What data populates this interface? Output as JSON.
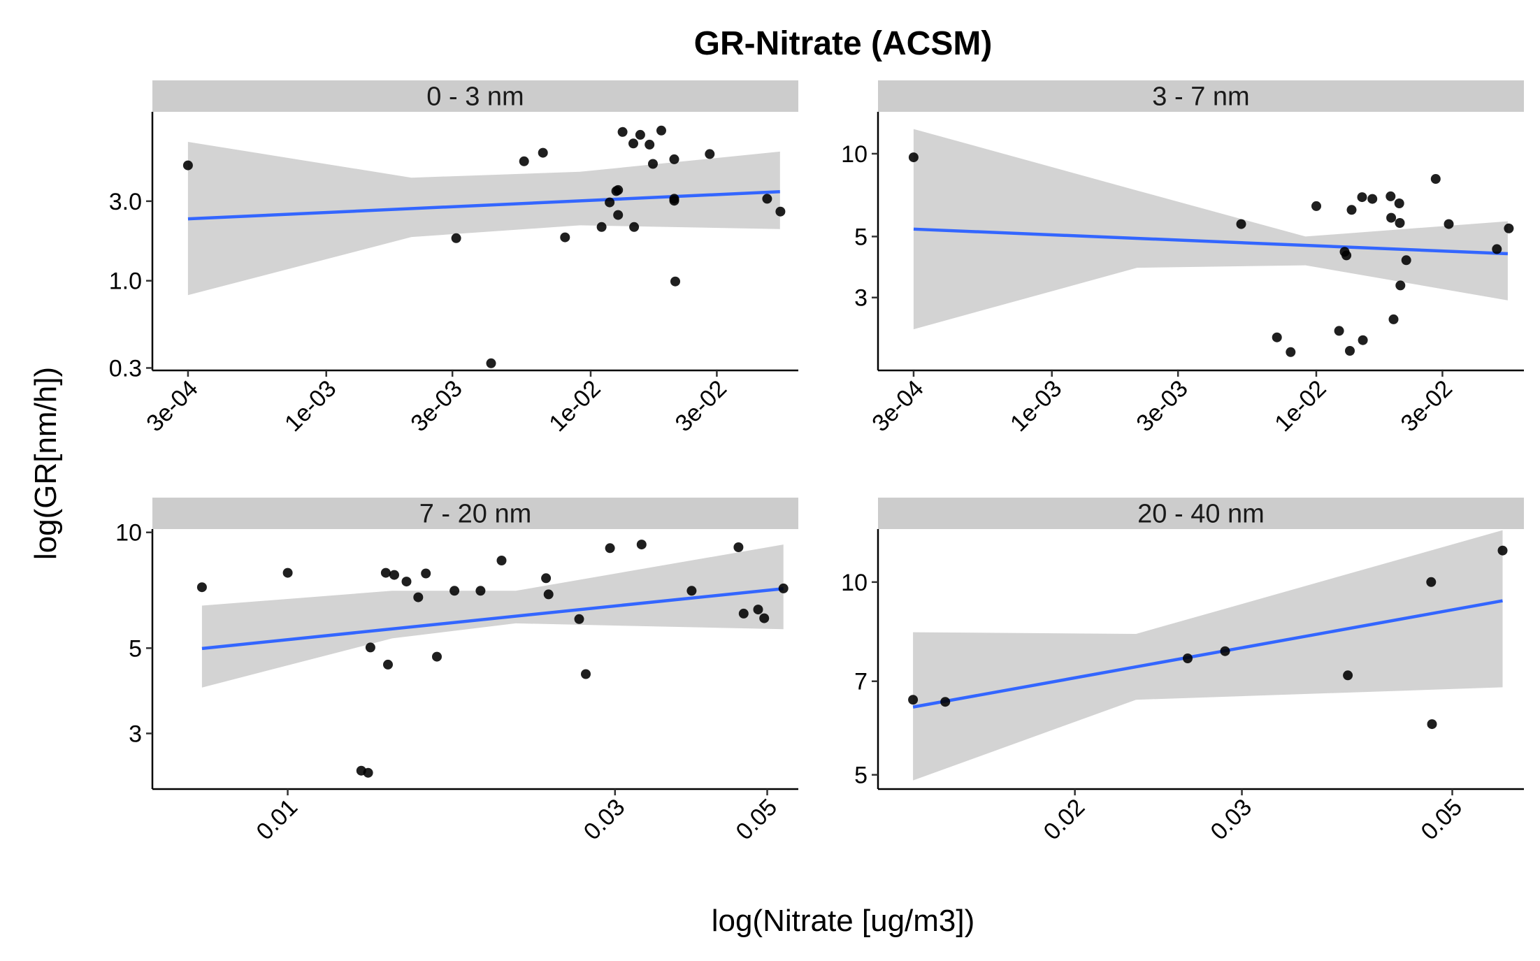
{
  "title": "GR-Nitrate (ACSM)",
  "xlabel": "log(Nitrate [ug/m3])",
  "ylabel": "log(GR[nm/h])",
  "colors": {
    "strip": "#cccccc",
    "band": "#d3d3d3",
    "fit_line": "#3366ff",
    "points": "#000000"
  },
  "chart_data": [
    {
      "type": "scatter",
      "panel": "0 - 3 nm",
      "x_scale": "log10",
      "y_scale": "log10",
      "xlim": [
        0.00022,
        0.061
      ],
      "ylim": [
        0.29,
        10.3
      ],
      "x_ticks": [
        {
          "value": 0.0003,
          "label": "3e-04"
        },
        {
          "value": 0.001,
          "label": "1e-03"
        },
        {
          "value": 0.003,
          "label": "3e-03"
        },
        {
          "value": 0.01,
          "label": "1e-02"
        },
        {
          "value": 0.03,
          "label": "3e-02"
        }
      ],
      "y_ticks": [
        {
          "value": 0.3,
          "label": "0.3"
        },
        {
          "value": 1.0,
          "label": "1.0"
        },
        {
          "value": 3.0,
          "label": "3.0"
        }
      ],
      "points": [
        [
          0.0003,
          4.92
        ],
        [
          0.0031,
          1.8
        ],
        [
          0.0042,
          0.32
        ],
        [
          0.0056,
          5.2
        ],
        [
          0.0066,
          5.85
        ],
        [
          0.008,
          1.82
        ],
        [
          0.011,
          2.1
        ],
        [
          0.0118,
          2.95
        ],
        [
          0.0125,
          3.45
        ],
        [
          0.0127,
          3.5
        ],
        [
          0.0127,
          2.48
        ],
        [
          0.0132,
          7.8
        ],
        [
          0.0145,
          6.65
        ],
        [
          0.0146,
          2.1
        ],
        [
          0.0154,
          7.5
        ],
        [
          0.0167,
          6.55
        ],
        [
          0.0172,
          5.02
        ],
        [
          0.0185,
          7.95
        ],
        [
          0.0207,
          5.35
        ],
        [
          0.0207,
          3.1
        ],
        [
          0.0207,
          3.02
        ],
        [
          0.0209,
          0.99
        ],
        [
          0.0282,
          5.75
        ],
        [
          0.0465,
          3.1
        ],
        [
          0.0522,
          2.6
        ]
      ],
      "fit": {
        "x": [
          0.0003,
          0.052
        ],
        "y": [
          2.35,
          3.42
        ]
      },
      "band": {
        "x": [
          0.0003,
          0.0021,
          0.0091,
          0.052
        ],
        "lower": [
          0.82,
          1.83,
          2.15,
          2.04
        ],
        "upper": [
          6.8,
          4.15,
          4.5,
          5.95
        ]
      }
    },
    {
      "type": "scatter",
      "panel": "3 - 7 nm",
      "x_scale": "log10",
      "y_scale": "log10",
      "xlim": [
        0.00022,
        0.061
      ],
      "ylim": [
        1.63,
        14.2
      ],
      "x_ticks": [
        {
          "value": 0.0003,
          "label": "3e-04"
        },
        {
          "value": 0.001,
          "label": "1e-03"
        },
        {
          "value": 0.003,
          "label": "3e-03"
        },
        {
          "value": 0.01,
          "label": "1e-02"
        },
        {
          "value": 0.03,
          "label": "3e-02"
        }
      ],
      "y_ticks": [
        {
          "value": 3,
          "label": "3"
        },
        {
          "value": 5,
          "label": "5"
        },
        {
          "value": 10,
          "label": "10"
        }
      ],
      "points": [
        [
          0.0003,
          9.7
        ],
        [
          0.0052,
          5.55
        ],
        [
          0.0071,
          2.15
        ],
        [
          0.008,
          1.9
        ],
        [
          0.01,
          6.45
        ],
        [
          0.0122,
          2.27
        ],
        [
          0.0128,
          4.4
        ],
        [
          0.013,
          4.27
        ],
        [
          0.0134,
          1.92
        ],
        [
          0.0136,
          6.25
        ],
        [
          0.0149,
          6.95
        ],
        [
          0.015,
          2.1
        ],
        [
          0.0163,
          6.85
        ],
        [
          0.0191,
          7.0
        ],
        [
          0.0192,
          5.85
        ],
        [
          0.0196,
          2.5
        ],
        [
          0.0206,
          6.6
        ],
        [
          0.0207,
          5.6
        ],
        [
          0.0208,
          3.32
        ],
        [
          0.0219,
          4.1
        ],
        [
          0.0283,
          8.1
        ],
        [
          0.0317,
          5.55
        ],
        [
          0.0482,
          4.5
        ],
        [
          0.0535,
          5.35
        ]
      ],
      "fit": {
        "x": [
          0.0003,
          0.053
        ],
        "y": [
          5.32,
          4.33
        ]
      },
      "band": {
        "x": [
          0.0003,
          0.0021,
          0.0091,
          0.053
        ],
        "lower": [
          2.3,
          3.85,
          3.93,
          2.93
        ],
        "upper": [
          12.3,
          7.35,
          5.0,
          5.68
        ]
      }
    },
    {
      "type": "scatter",
      "panel": "7 - 20 nm",
      "x_scale": "log10",
      "y_scale": "log10",
      "xlim": [
        0.00635,
        0.0555
      ],
      "ylim": [
        2.15,
        10.2
      ],
      "x_ticks": [
        {
          "value": 0.01,
          "label": "0.01"
        },
        {
          "value": 0.03,
          "label": "0.03"
        },
        {
          "value": 0.05,
          "label": "0.05"
        }
      ],
      "y_ticks": [
        {
          "value": 3,
          "label": "3"
        },
        {
          "value": 5,
          "label": "5"
        },
        {
          "value": 10,
          "label": "10"
        }
      ],
      "points": [
        [
          0.0075,
          7.2
        ],
        [
          0.01,
          7.85
        ],
        [
          0.0128,
          2.4
        ],
        [
          0.0131,
          2.37
        ],
        [
          0.0132,
          5.02
        ],
        [
          0.0139,
          7.85
        ],
        [
          0.014,
          4.53
        ],
        [
          0.0143,
          7.75
        ],
        [
          0.0149,
          7.45
        ],
        [
          0.0155,
          6.78
        ],
        [
          0.0159,
          7.82
        ],
        [
          0.0165,
          4.75
        ],
        [
          0.0175,
          7.05
        ],
        [
          0.0191,
          7.05
        ],
        [
          0.0205,
          8.45
        ],
        [
          0.0238,
          7.6
        ],
        [
          0.024,
          6.9
        ],
        [
          0.0266,
          5.95
        ],
        [
          0.0272,
          4.28
        ],
        [
          0.0295,
          9.1
        ],
        [
          0.0328,
          9.3
        ],
        [
          0.0388,
          7.05
        ],
        [
          0.0454,
          9.15
        ],
        [
          0.0462,
          6.15
        ],
        [
          0.0485,
          6.3
        ],
        [
          0.0495,
          5.98
        ],
        [
          0.0528,
          7.15
        ]
      ],
      "fit": {
        "x": [
          0.0075,
          0.0528
        ],
        "y": [
          4.99,
          7.14
        ]
      },
      "band": {
        "x": [
          0.0075,
          0.0142,
          0.0215,
          0.0528
        ],
        "lower": [
          3.95,
          5.3,
          5.8,
          5.6
        ],
        "upper": [
          6.45,
          7.05,
          7.05,
          9.3
        ]
      }
    },
    {
      "type": "scatter",
      "panel": "20 - 40 nm",
      "x_scale": "log10",
      "y_scale": "log10",
      "xlim": [
        0.0124,
        0.0595
      ],
      "ylim": [
        4.75,
        12.1
      ],
      "x_ticks": [
        {
          "value": 0.02,
          "label": "0.02"
        },
        {
          "value": 0.03,
          "label": "0.03"
        },
        {
          "value": 0.05,
          "label": "0.05"
        }
      ],
      "y_ticks": [
        {
          "value": 5,
          "label": "5"
        },
        {
          "value": 7,
          "label": "7"
        },
        {
          "value": 10,
          "label": "10"
        }
      ],
      "points": [
        [
          0.0135,
          6.55
        ],
        [
          0.0146,
          6.5
        ],
        [
          0.0263,
          7.6
        ],
        [
          0.0288,
          7.8
        ],
        [
          0.0388,
          7.15
        ],
        [
          0.0475,
          10.0
        ],
        [
          0.0476,
          6.0
        ],
        [
          0.0565,
          11.2
        ]
      ],
      "fit": {
        "x": [
          0.0135,
          0.0565
        ],
        "y": [
          6.38,
          9.35
        ]
      },
      "band": {
        "x": [
          0.0135,
          0.0232,
          0.0565
        ],
        "lower": [
          4.9,
          6.55,
          6.85
        ],
        "upper": [
          8.35,
          8.3,
          12.05
        ]
      }
    }
  ]
}
